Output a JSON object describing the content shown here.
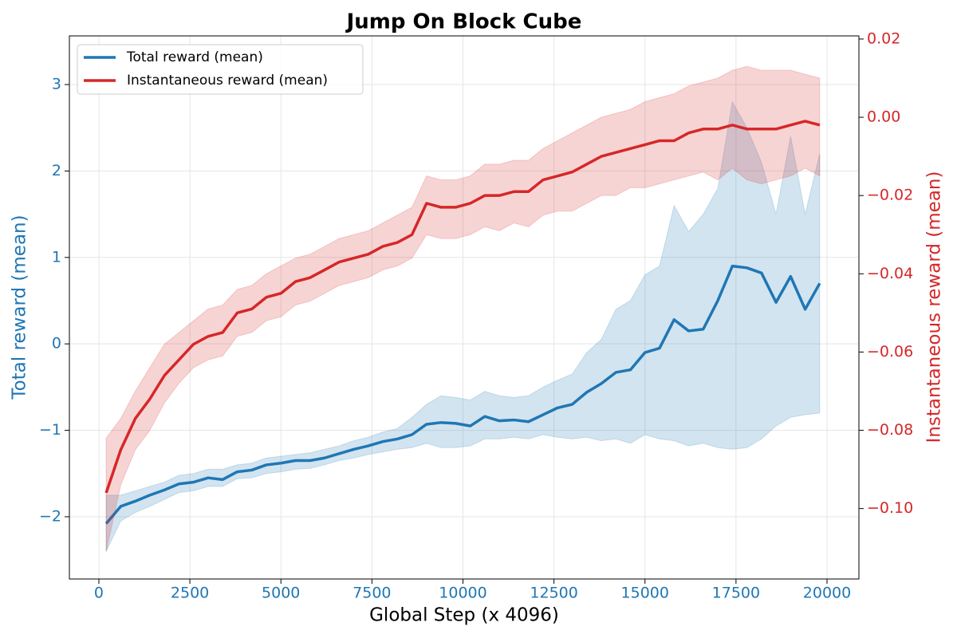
{
  "chart_data": {
    "type": "line",
    "title": "Jump On Block Cube",
    "xlabel": "Global Step (x 4096)",
    "ylabel": "Total reward (mean)",
    "y2label": "Instantaneous reward (mean)",
    "x": [
      200,
      600,
      1000,
      1400,
      1800,
      2200,
      2600,
      3000,
      3400,
      3800,
      4200,
      4600,
      5000,
      5400,
      5800,
      6200,
      6600,
      7000,
      7400,
      7800,
      8200,
      8600,
      9000,
      9400,
      9800,
      10200,
      10600,
      11000,
      11400,
      11800,
      12200,
      12600,
      13000,
      13400,
      13800,
      14200,
      14600,
      15000,
      15400,
      15800,
      16200,
      16600,
      17000,
      17400,
      17800,
      18200,
      18600,
      19000,
      19400,
      19800
    ],
    "series": [
      {
        "name": "Total reward (mean)",
        "color": "#1f77b4",
        "values": [
          -2.08,
          -1.88,
          -1.82,
          -1.75,
          -1.69,
          -1.62,
          -1.6,
          -1.55,
          -1.57,
          -1.48,
          -1.46,
          -1.4,
          -1.38,
          -1.35,
          -1.35,
          -1.32,
          -1.27,
          -1.22,
          -1.18,
          -1.13,
          -1.1,
          -1.05,
          -0.93,
          -0.91,
          -0.92,
          -0.95,
          -0.84,
          -0.89,
          -0.88,
          -0.9,
          -0.82,
          -0.74,
          -0.7,
          -0.56,
          -0.46,
          -0.33,
          -0.3,
          -0.1,
          -0.05,
          0.28,
          0.15,
          0.17,
          0.5,
          0.9,
          0.88,
          0.82,
          0.48,
          0.78,
          0.4,
          0.7
        ],
        "band_lower": [
          -2.4,
          -2.05,
          -1.95,
          -1.88,
          -1.8,
          -1.72,
          -1.7,
          -1.65,
          -1.65,
          -1.56,
          -1.55,
          -1.5,
          -1.48,
          -1.45,
          -1.44,
          -1.4,
          -1.35,
          -1.32,
          -1.28,
          -1.25,
          -1.22,
          -1.2,
          -1.15,
          -1.2,
          -1.2,
          -1.18,
          -1.1,
          -1.1,
          -1.08,
          -1.1,
          -1.05,
          -1.08,
          -1.1,
          -1.08,
          -1.12,
          -1.1,
          -1.15,
          -1.05,
          -1.1,
          -1.12,
          -1.18,
          -1.15,
          -1.2,
          -1.22,
          -1.2,
          -1.1,
          -0.95,
          -0.85,
          -0.82,
          -0.8
        ],
        "band_upper": [
          -1.75,
          -1.75,
          -1.7,
          -1.65,
          -1.6,
          -1.52,
          -1.5,
          -1.45,
          -1.45,
          -1.4,
          -1.38,
          -1.32,
          -1.3,
          -1.28,
          -1.26,
          -1.22,
          -1.18,
          -1.12,
          -1.08,
          -1.02,
          -0.98,
          -0.85,
          -0.7,
          -0.6,
          -0.62,
          -0.65,
          -0.55,
          -0.6,
          -0.62,
          -0.6,
          -0.5,
          -0.42,
          -0.35,
          -0.1,
          0.05,
          0.4,
          0.5,
          0.8,
          0.9,
          1.6,
          1.3,
          1.5,
          1.8,
          2.8,
          2.5,
          2.1,
          1.5,
          2.4,
          1.5,
          2.2
        ]
      },
      {
        "name": "Instantaneous reward (mean)",
        "color": "#d62728",
        "axis": "y2",
        "values": [
          -0.096,
          -0.085,
          -0.077,
          -0.072,
          -0.066,
          -0.062,
          -0.058,
          -0.056,
          -0.055,
          -0.05,
          -0.049,
          -0.046,
          -0.045,
          -0.042,
          -0.041,
          -0.039,
          -0.037,
          -0.036,
          -0.035,
          -0.033,
          -0.032,
          -0.03,
          -0.022,
          -0.023,
          -0.023,
          -0.022,
          -0.02,
          -0.02,
          -0.019,
          -0.019,
          -0.016,
          -0.015,
          -0.014,
          -0.012,
          -0.01,
          -0.009,
          -0.008,
          -0.007,
          -0.006,
          -0.006,
          -0.004,
          -0.003,
          -0.003,
          -0.002,
          -0.003,
          -0.003,
          -0.003,
          -0.002,
          -0.001,
          -0.002
        ],
        "band_lower": [
          -0.111,
          -0.094,
          -0.085,
          -0.08,
          -0.073,
          -0.068,
          -0.064,
          -0.062,
          -0.061,
          -0.056,
          -0.055,
          -0.052,
          -0.051,
          -0.048,
          -0.047,
          -0.045,
          -0.043,
          -0.042,
          -0.041,
          -0.039,
          -0.038,
          -0.036,
          -0.03,
          -0.031,
          -0.031,
          -0.03,
          -0.028,
          -0.029,
          -0.027,
          -0.028,
          -0.025,
          -0.024,
          -0.024,
          -0.022,
          -0.02,
          -0.02,
          -0.018,
          -0.018,
          -0.017,
          -0.016,
          -0.015,
          -0.014,
          -0.016,
          -0.013,
          -0.016,
          -0.017,
          -0.016,
          -0.015,
          -0.013,
          -0.015
        ],
        "band_upper": [
          -0.082,
          -0.077,
          -0.07,
          -0.064,
          -0.058,
          -0.055,
          -0.052,
          -0.049,
          -0.048,
          -0.044,
          -0.043,
          -0.04,
          -0.038,
          -0.036,
          -0.035,
          -0.033,
          -0.031,
          -0.03,
          -0.029,
          -0.027,
          -0.025,
          -0.023,
          -0.015,
          -0.016,
          -0.016,
          -0.015,
          -0.012,
          -0.012,
          -0.011,
          -0.011,
          -0.008,
          -0.006,
          -0.004,
          -0.002,
          0,
          0.001,
          0.002,
          0.004,
          0.005,
          0.006,
          0.008,
          0.009,
          0.01,
          0.012,
          0.013,
          0.012,
          0.012,
          0.012,
          0.011,
          0.01
        ]
      }
    ],
    "xlim": [
      -810,
      20876
    ],
    "ylim": [
      -2.72,
      3.563
    ],
    "y2lim": [
      -0.118,
      0.0208
    ],
    "xticks": [
      0,
      2500,
      5000,
      7500,
      10000,
      12500,
      15000,
      17500,
      20000
    ],
    "yticks": [
      {
        "value": -2,
        "label": "−2"
      },
      {
        "value": -1,
        "label": "−1"
      },
      0,
      1,
      2,
      3
    ],
    "y2ticks": [
      {
        "value": 0.02,
        "label": "0.02"
      },
      {
        "value": 0,
        "label": "0.00"
      },
      {
        "value": -0.02,
        "label": "−0.02"
      },
      {
        "value": -0.04,
        "label": "−0.04"
      },
      {
        "value": -0.06,
        "label": "−0.06"
      },
      {
        "value": -0.08,
        "label": "−0.08"
      },
      {
        "value": -0.1,
        "label": "−0.10"
      }
    ],
    "grid": true,
    "legend": "upper left"
  }
}
